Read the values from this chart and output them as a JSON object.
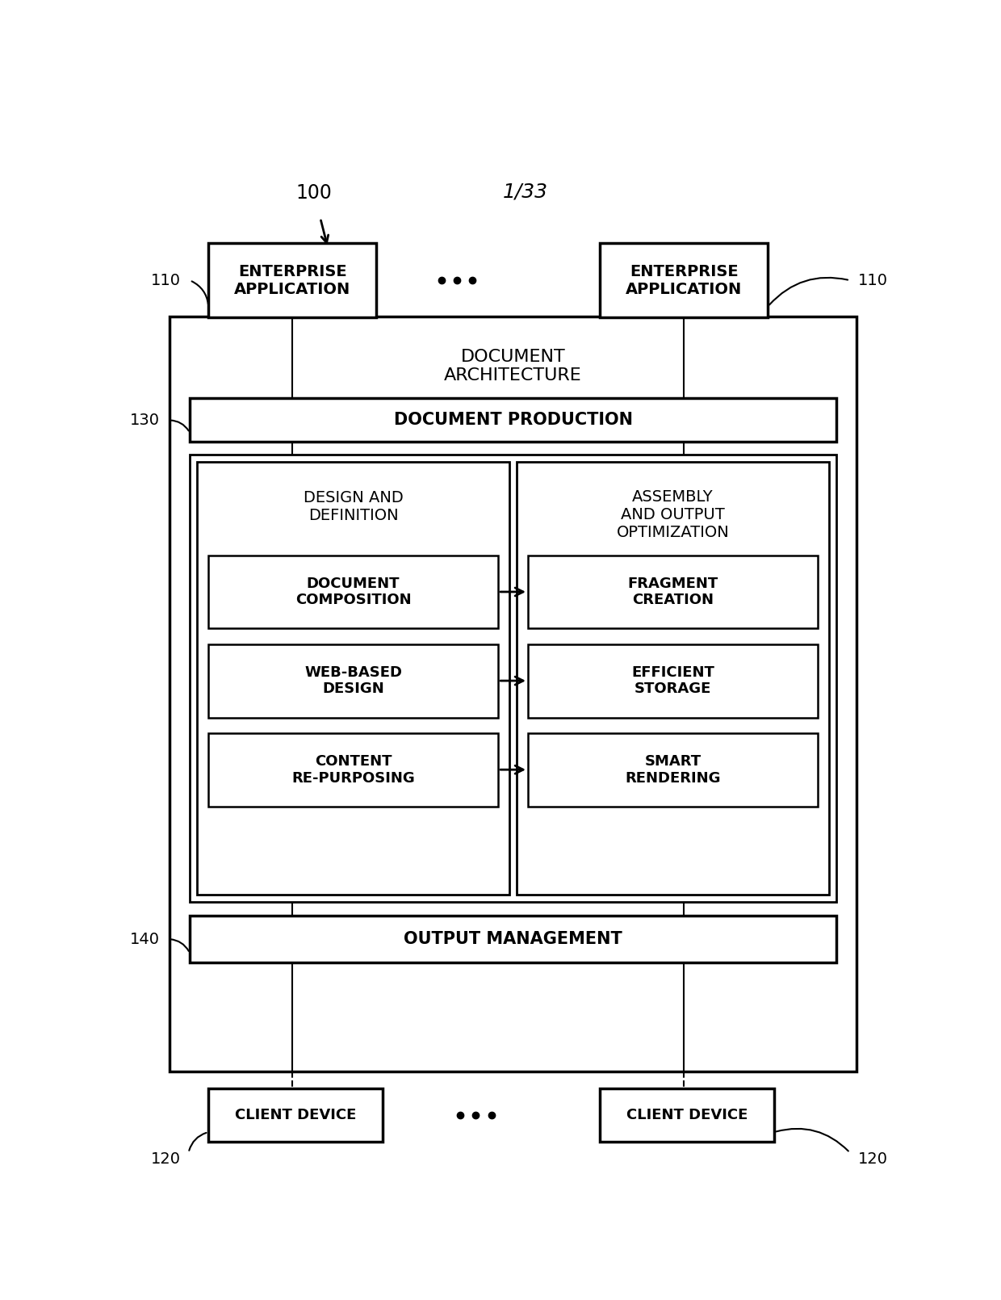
{
  "bg_color": "#ffffff",
  "fig_label": "100",
  "page_label": "1/33",
  "ref_110_left": "110",
  "ref_110_right": "110",
  "ref_130": "130",
  "ref_140": "140",
  "ref_120_left": "120",
  "ref_120_right": "120",
  "enterprise_app_text": "ENTERPRISE\nAPPLICATION",
  "client_device_text": "CLIENT DEVICE",
  "doc_arch_text": "DOCUMENT\nARCHITECTURE",
  "doc_prod_text": "DOCUMENT PRODUCTION",
  "design_def_text": "DESIGN AND\nDEFINITION",
  "assembly_text": "ASSEMBLY\nAND OUTPUT\nOPTIMIZATION",
  "doc_comp_text": "DOCUMENT\nCOMPOSITION",
  "frag_create_text": "FRAGMENT\nCREATION",
  "web_design_text": "WEB-BASED\nDESIGN",
  "eff_storage_text": "EFFICIENT\nSTORAGE",
  "content_rep_text": "CONTENT\nRE-PURPOSING",
  "smart_rend_text": "SMART\nRENDERING",
  "output_mgmt_text": "OUTPUT MANAGEMENT"
}
